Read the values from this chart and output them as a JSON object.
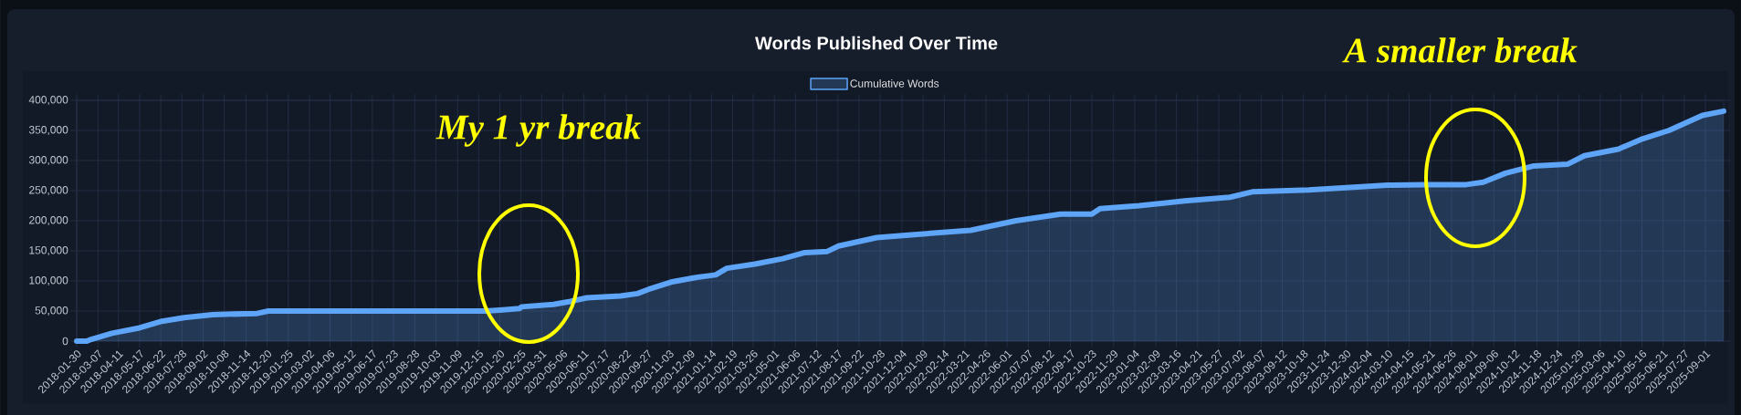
{
  "chart_data": {
    "type": "area",
    "title": "Words Published Over Time",
    "x": [
      "2018-01-30",
      "2018-02-16",
      "2018-02-21",
      "2018-03-31",
      "2018-05-17",
      "2018-06-24",
      "2018-08-01",
      "2018-09-18",
      "2018-12-03",
      "2018-12-22",
      "2019-12-27",
      "2020-01-25",
      "2020-02-22",
      "2020-02-26",
      "2020-04-20",
      "2020-05-19",
      "2020-06-16",
      "2020-08-12",
      "2020-09-10",
      "2020-09-29",
      "2020-11-06",
      "2020-12-14",
      "2021-01-21",
      "2021-02-09",
      "2021-03-29",
      "2021-05-15",
      "2021-06-22",
      "2021-07-30",
      "2021-08-18",
      "2021-10-22",
      "2021-12-25",
      "2022-03-31",
      "2022-06-16",
      "2022-08-31",
      "2022-10-23",
      "2022-11-06",
      "2023-01-12",
      "2023-03-30",
      "2023-06-15",
      "2023-07-23",
      "2023-10-27",
      "2024-03-09",
      "2024-05-15",
      "2024-07-21",
      "2024-08-19",
      "2024-09-26",
      "2024-11-13",
      "2025-01-10",
      "2025-02-07",
      "2025-04-06",
      "2025-05-14",
      "2025-07-01",
      "2025-08-27",
      "2025-10-02"
    ],
    "series": [
      {
        "name": "Cumulative Words",
        "color": "#5ea4f7",
        "values": [
          0,
          0,
          2000,
          13000,
          22000,
          33000,
          39000,
          44000,
          46000,
          50000,
          50000,
          52000,
          54000,
          57000,
          61000,
          66000,
          72000,
          75000,
          79000,
          86000,
          98000,
          105000,
          110000,
          121000,
          128000,
          137000,
          147000,
          149000,
          158000,
          172000,
          177000,
          184000,
          200000,
          211000,
          211000,
          220000,
          225000,
          233000,
          239000,
          248000,
          251000,
          259000,
          260000,
          260000,
          264000,
          279000,
          291000,
          294000,
          308000,
          319000,
          335000,
          350000,
          375000,
          382000
        ]
      }
    ],
    "xlim": [
      "2018-01-30",
      "2025-10-02"
    ],
    "xticks": [
      "2018-01-30",
      "2018-03-07",
      "2018-04-11",
      "2018-05-17",
      "2018-06-22",
      "2018-07-28",
      "2018-09-02",
      "2018-10-08",
      "2018-11-14",
      "2018-12-20",
      "2019-01-25",
      "2019-03-02",
      "2019-04-06",
      "2019-05-12",
      "2019-06-17",
      "2019-07-23",
      "2019-08-28",
      "2019-10-03",
      "2019-11-09",
      "2019-12-15",
      "2020-01-20",
      "2020-02-25",
      "2020-03-31",
      "2020-05-06",
      "2020-06-11",
      "2020-07-17",
      "2020-08-22",
      "2020-09-27",
      "2020-11-03",
      "2020-12-09",
      "2021-01-14",
      "2021-02-19",
      "2021-03-26",
      "2021-05-01",
      "2021-06-06",
      "2021-07-12",
      "2021-08-17",
      "2021-09-22",
      "2021-10-28",
      "2021-12-04",
      "2022-01-09",
      "2022-02-14",
      "2022-03-21",
      "2022-04-26",
      "2022-06-01",
      "2022-07-07",
      "2022-08-12",
      "2022-09-17",
      "2022-10-23",
      "2022-11-29",
      "2023-01-04",
      "2023-02-09",
      "2023-03-16",
      "2023-04-21",
      "2023-05-27",
      "2023-07-02",
      "2023-08-07",
      "2023-09-12",
      "2023-10-18",
      "2023-11-24",
      "2023-12-30",
      "2024-02-04",
      "2024-03-10",
      "2024-04-15",
      "2024-05-21",
      "2024-06-26",
      "2024-08-01",
      "2024-09-06",
      "2024-10-12",
      "2024-11-18",
      "2024-12-24",
      "2025-01-29",
      "2025-03-06",
      "2025-04-10",
      "2025-05-16",
      "2025-06-21",
      "2025-07-27",
      "2025-09-01"
    ],
    "ylim": [
      0,
      400000
    ],
    "yticks": [
      0,
      {
        "value": 50000,
        "label": "50,000"
      },
      {
        "value": 100000,
        "label": "100,000"
      },
      {
        "value": 150000,
        "label": "150,000"
      },
      {
        "value": 200000,
        "label": "200,000"
      },
      {
        "value": 250000,
        "label": "250,000"
      },
      {
        "value": 300000,
        "label": "300,000"
      },
      {
        "value": 350000,
        "label": "350,000"
      },
      {
        "value": 400000,
        "label": "400,000"
      }
    ],
    "grid": true,
    "legend": "top",
    "annotations": [
      "My 1 yr break",
      "A smaller break"
    ]
  }
}
